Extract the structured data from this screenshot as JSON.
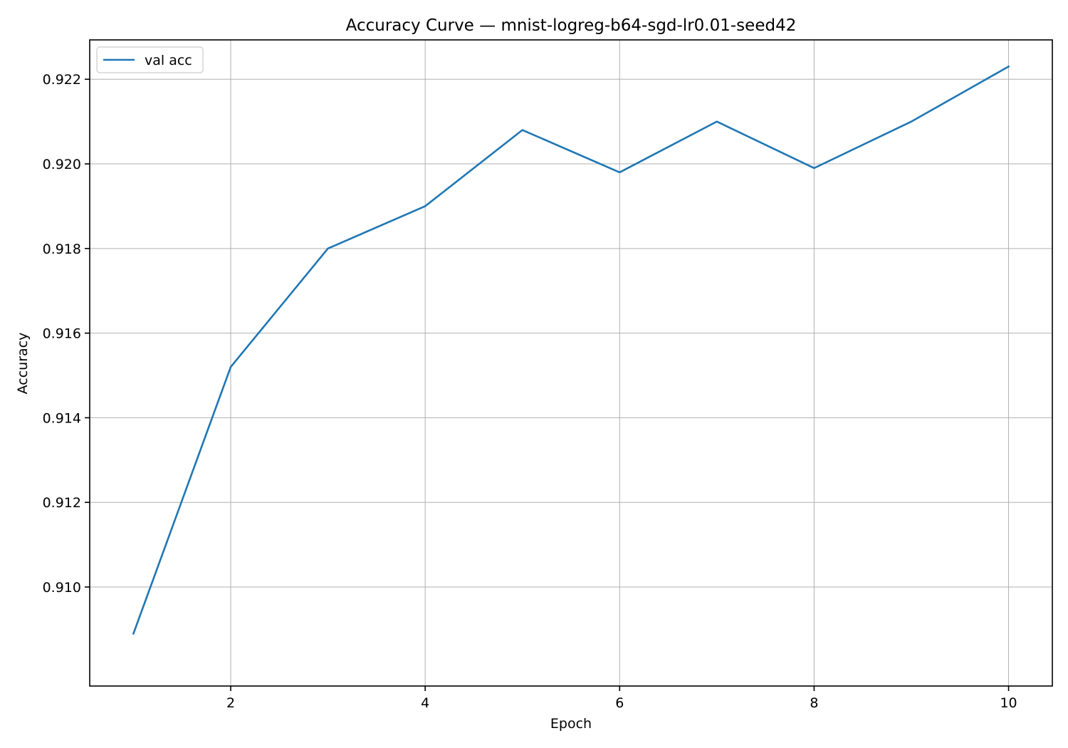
{
  "chart_data": {
    "type": "line",
    "title": "Accuracy Curve — mnist-logreg-b64-sgd-lr0.01-seed42",
    "xlabel": "Epoch",
    "ylabel": "Accuracy",
    "x": [
      1,
      2,
      3,
      4,
      5,
      6,
      7,
      8,
      9,
      10
    ],
    "series": [
      {
        "name": "val acc",
        "color": "#1f77b4",
        "values": [
          0.9089,
          0.9152,
          0.918,
          0.919,
          0.9208,
          0.9198,
          0.921,
          0.9199,
          0.921,
          0.9223
        ]
      }
    ],
    "xlim": [
      0.55,
      10.45
    ],
    "ylim": [
      0.90766,
      0.92293
    ],
    "xticks": [
      2,
      4,
      6,
      8,
      10
    ],
    "xtick_labels": [
      "2",
      "4",
      "6",
      "8",
      "10"
    ],
    "yticks": [
      0.91,
      0.912,
      0.914,
      0.916,
      0.918,
      0.92,
      0.922
    ],
    "ytick_labels": [
      "0.910",
      "0.912",
      "0.914",
      "0.916",
      "0.918",
      "0.920",
      "0.922"
    ],
    "grid": true,
    "legend_position": "top-left"
  }
}
